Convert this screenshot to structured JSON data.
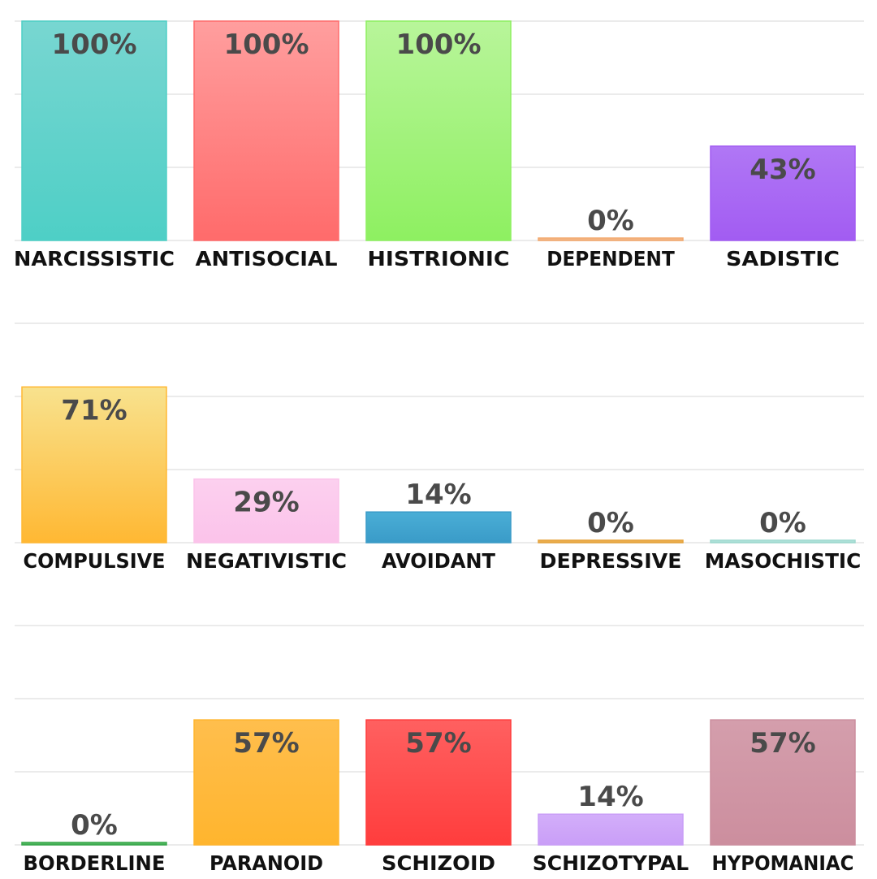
{
  "chart_data": [
    {
      "type": "bar",
      "categories": [
        "NARCISSISTIC",
        "ANTISOCIAL",
        "HISTRIONIC",
        "DEPENDENT",
        "SADISTIC"
      ],
      "values": [
        100,
        100,
        100,
        0,
        43
      ],
      "value_labels": [
        "100%",
        "100%",
        "100%",
        "0%",
        "43%"
      ],
      "colors": [
        [
          "#78d6d1",
          "#4ecfc6"
        ],
        [
          "#ff9e9e",
          "#ff6b6b"
        ],
        [
          "#b8f59a",
          "#8ef061"
        ],
        [
          "#f7c49c",
          "#f2a86e"
        ],
        [
          "#b077f5",
          "#a25cf2"
        ]
      ],
      "ylim": [
        0,
        100
      ],
      "grid": true
    },
    {
      "type": "bar",
      "categories": [
        "COMPULSIVE",
        "NEGATIVISTIC",
        "AVOIDANT",
        "DEPRESSIVE",
        "MASOCHISTIC"
      ],
      "values": [
        71,
        29,
        14,
        0,
        0
      ],
      "value_labels": [
        "71%",
        "29%",
        "14%",
        "0%",
        "0%"
      ],
      "colors": [
        [
          "#f8e28e",
          "#ffb833"
        ],
        [
          "#fcd0ef",
          "#fbc3ea"
        ],
        [
          "#4aaed6",
          "#3a9bc8"
        ],
        [
          "#f0b45a",
          "#e5a33c"
        ],
        [
          "#b8e6df",
          "#9fd9cf"
        ]
      ],
      "ylim": [
        0,
        100
      ],
      "grid": true
    },
    {
      "type": "bar",
      "categories": [
        "BORDERLINE",
        "PARANOID",
        "SCHIZOID",
        "SCHIZOTYPAL",
        "HYPOMANIAC"
      ],
      "values": [
        0,
        57,
        57,
        14,
        57
      ],
      "value_labels": [
        "0%",
        "57%",
        "57%",
        "14%",
        "57%"
      ],
      "colors": [
        [
          "#5bc36a",
          "#3aa84c"
        ],
        [
          "#ffbe4d",
          "#ffb52e"
        ],
        [
          "#ff6060",
          "#ff3d3d"
        ],
        [
          "#d3aefa",
          "#c99ef7"
        ],
        [
          "#d49eac",
          "#cc8e9e"
        ]
      ],
      "ylim": [
        0,
        100
      ],
      "grid": true
    }
  ]
}
